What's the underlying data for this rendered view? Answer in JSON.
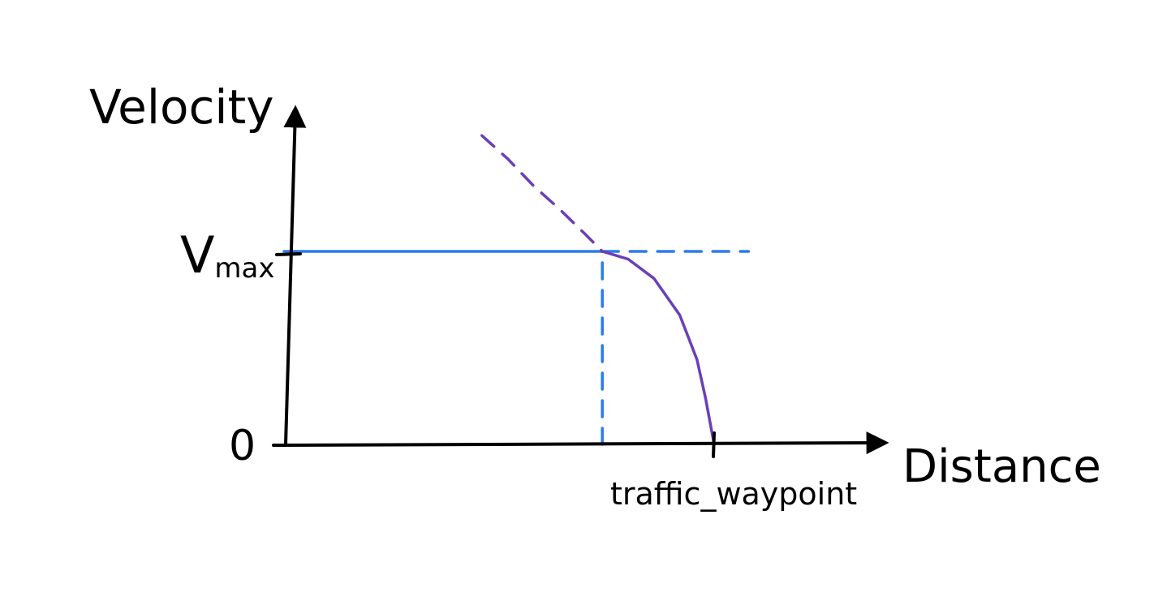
{
  "chart_data": {
    "type": "line",
    "title": "",
    "xlabel": "Distance",
    "ylabel": "Velocity",
    "y_ticks": [
      {
        "value": 0,
        "label": "0"
      },
      {
        "value": 1,
        "label": "V",
        "label_sub": "max"
      }
    ],
    "x_ticks": [
      {
        "value": 1,
        "label": "traffic_waypoint"
      }
    ],
    "xlim": [
      0,
      1.4
    ],
    "ylim": [
      0,
      1.8
    ],
    "grid": false,
    "legend": "none",
    "colors": {
      "axis": "#000000",
      "vmax": "#2a7bef",
      "decel": "#6a3fb8"
    },
    "series": [
      {
        "style": "solid",
        "color": "#2a7bef",
        "points": [
          [
            0,
            1.0
          ],
          [
            0.74,
            1.0
          ]
        ]
      },
      {
        "style": "dashed",
        "color": "#2a7bef",
        "points": [
          [
            0.74,
            1.0
          ],
          [
            1.08,
            1.0
          ]
        ]
      },
      {
        "style": "dashed",
        "color": "#2a7bef",
        "points": [
          [
            0.74,
            0.0
          ],
          [
            0.74,
            1.0
          ]
        ]
      },
      {
        "style": "solid",
        "color": "#6a3fb8",
        "points": [
          [
            0.74,
            1.0
          ],
          [
            0.8,
            0.96
          ],
          [
            0.86,
            0.86
          ],
          [
            0.92,
            0.67
          ],
          [
            0.96,
            0.44
          ],
          [
            0.98,
            0.24
          ],
          [
            1.0,
            0.0
          ]
        ]
      },
      {
        "style": "dashed",
        "color": "#6a3fb8",
        "points": [
          [
            0.46,
            1.6
          ],
          [
            0.52,
            1.48
          ],
          [
            0.58,
            1.34
          ],
          [
            0.64,
            1.22
          ],
          [
            0.7,
            1.09
          ],
          [
            0.74,
            1.0
          ]
        ]
      }
    ]
  }
}
